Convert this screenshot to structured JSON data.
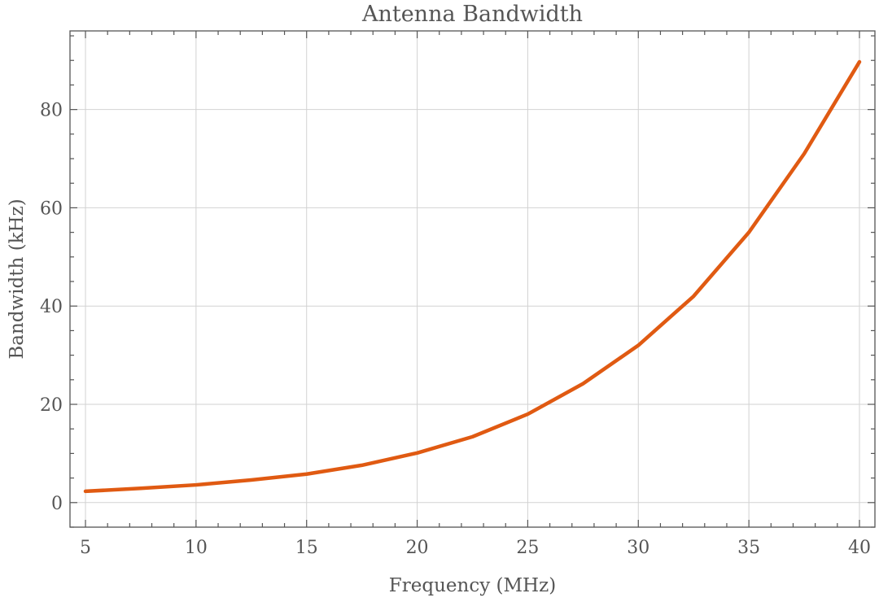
{
  "chart_data": {
    "type": "line",
    "title": "Antenna Bandwidth",
    "xlabel": "Frequency (MHz)",
    "ylabel": "Bandwidth (kHz)",
    "xlim": [
      4.3,
      40.7
    ],
    "ylim": [
      -5,
      96
    ],
    "xticks": [
      5,
      10,
      15,
      20,
      25,
      30,
      35,
      40
    ],
    "yticks": [
      0,
      20,
      40,
      60,
      80
    ],
    "x_minor_step": 1,
    "y_minor_step": 5,
    "grid": true,
    "color": "#e05a12",
    "x": [
      5,
      7.5,
      10,
      12.5,
      15,
      17.5,
      20,
      22.5,
      25,
      27.5,
      30,
      32.5,
      35,
      37.5,
      40
    ],
    "y": [
      2.3,
      2.9,
      3.6,
      4.6,
      5.8,
      7.6,
      10.1,
      13.4,
      18.0,
      24.2,
      32.0,
      42.0,
      55.0,
      71.0,
      89.7
    ]
  }
}
